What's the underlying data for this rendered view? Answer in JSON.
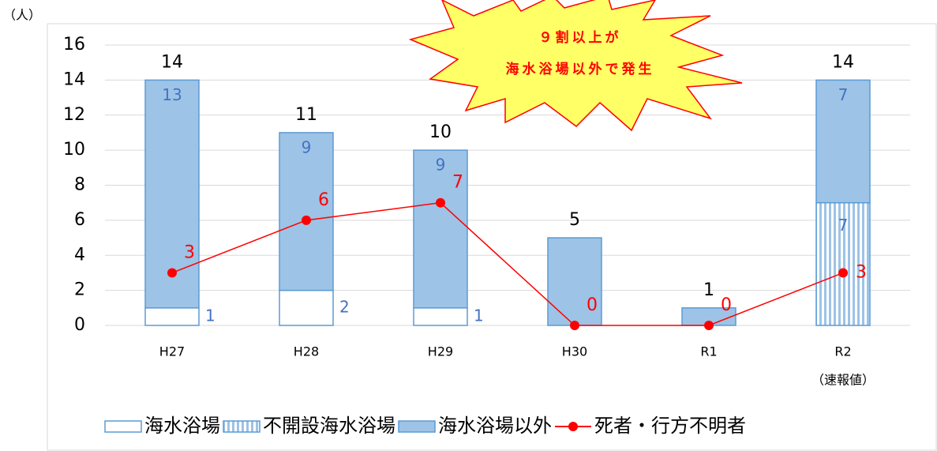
{
  "chart_data": {
    "type": "bar",
    "y_unit": "（人）",
    "annotation": [
      "９割以上が",
      "海水浴場以外で発生"
    ],
    "categories": [
      "H27",
      "H28",
      "H29",
      "H30",
      "R1",
      "R2"
    ],
    "category_notes": [
      null,
      null,
      null,
      null,
      null,
      "（速報値）"
    ],
    "series": [
      {
        "name": "海水浴場",
        "color": "#ffffff",
        "values": [
          1,
          2,
          1,
          0,
          0,
          0
        ]
      },
      {
        "name": "不開設海水浴場",
        "color": "#9dc3e6",
        "pattern": "vertical-stripes",
        "values": [
          0,
          0,
          0,
          0,
          0,
          7
        ]
      },
      {
        "name": "海水浴場以外",
        "color": "#9dc3e6",
        "values": [
          13,
          9,
          9,
          5,
          1,
          7
        ]
      },
      {
        "name": "死者・行方不明者",
        "type": "line",
        "color": "#ff0000",
        "values": [
          3,
          6,
          7,
          0,
          0,
          3
        ]
      }
    ],
    "totals": [
      14,
      11,
      10,
      5,
      1,
      14
    ],
    "ylim": [
      0,
      16
    ],
    "yticks": [
      0,
      2,
      4,
      6,
      8,
      10,
      12,
      14,
      16
    ],
    "grid": true,
    "legend": "bottom"
  }
}
